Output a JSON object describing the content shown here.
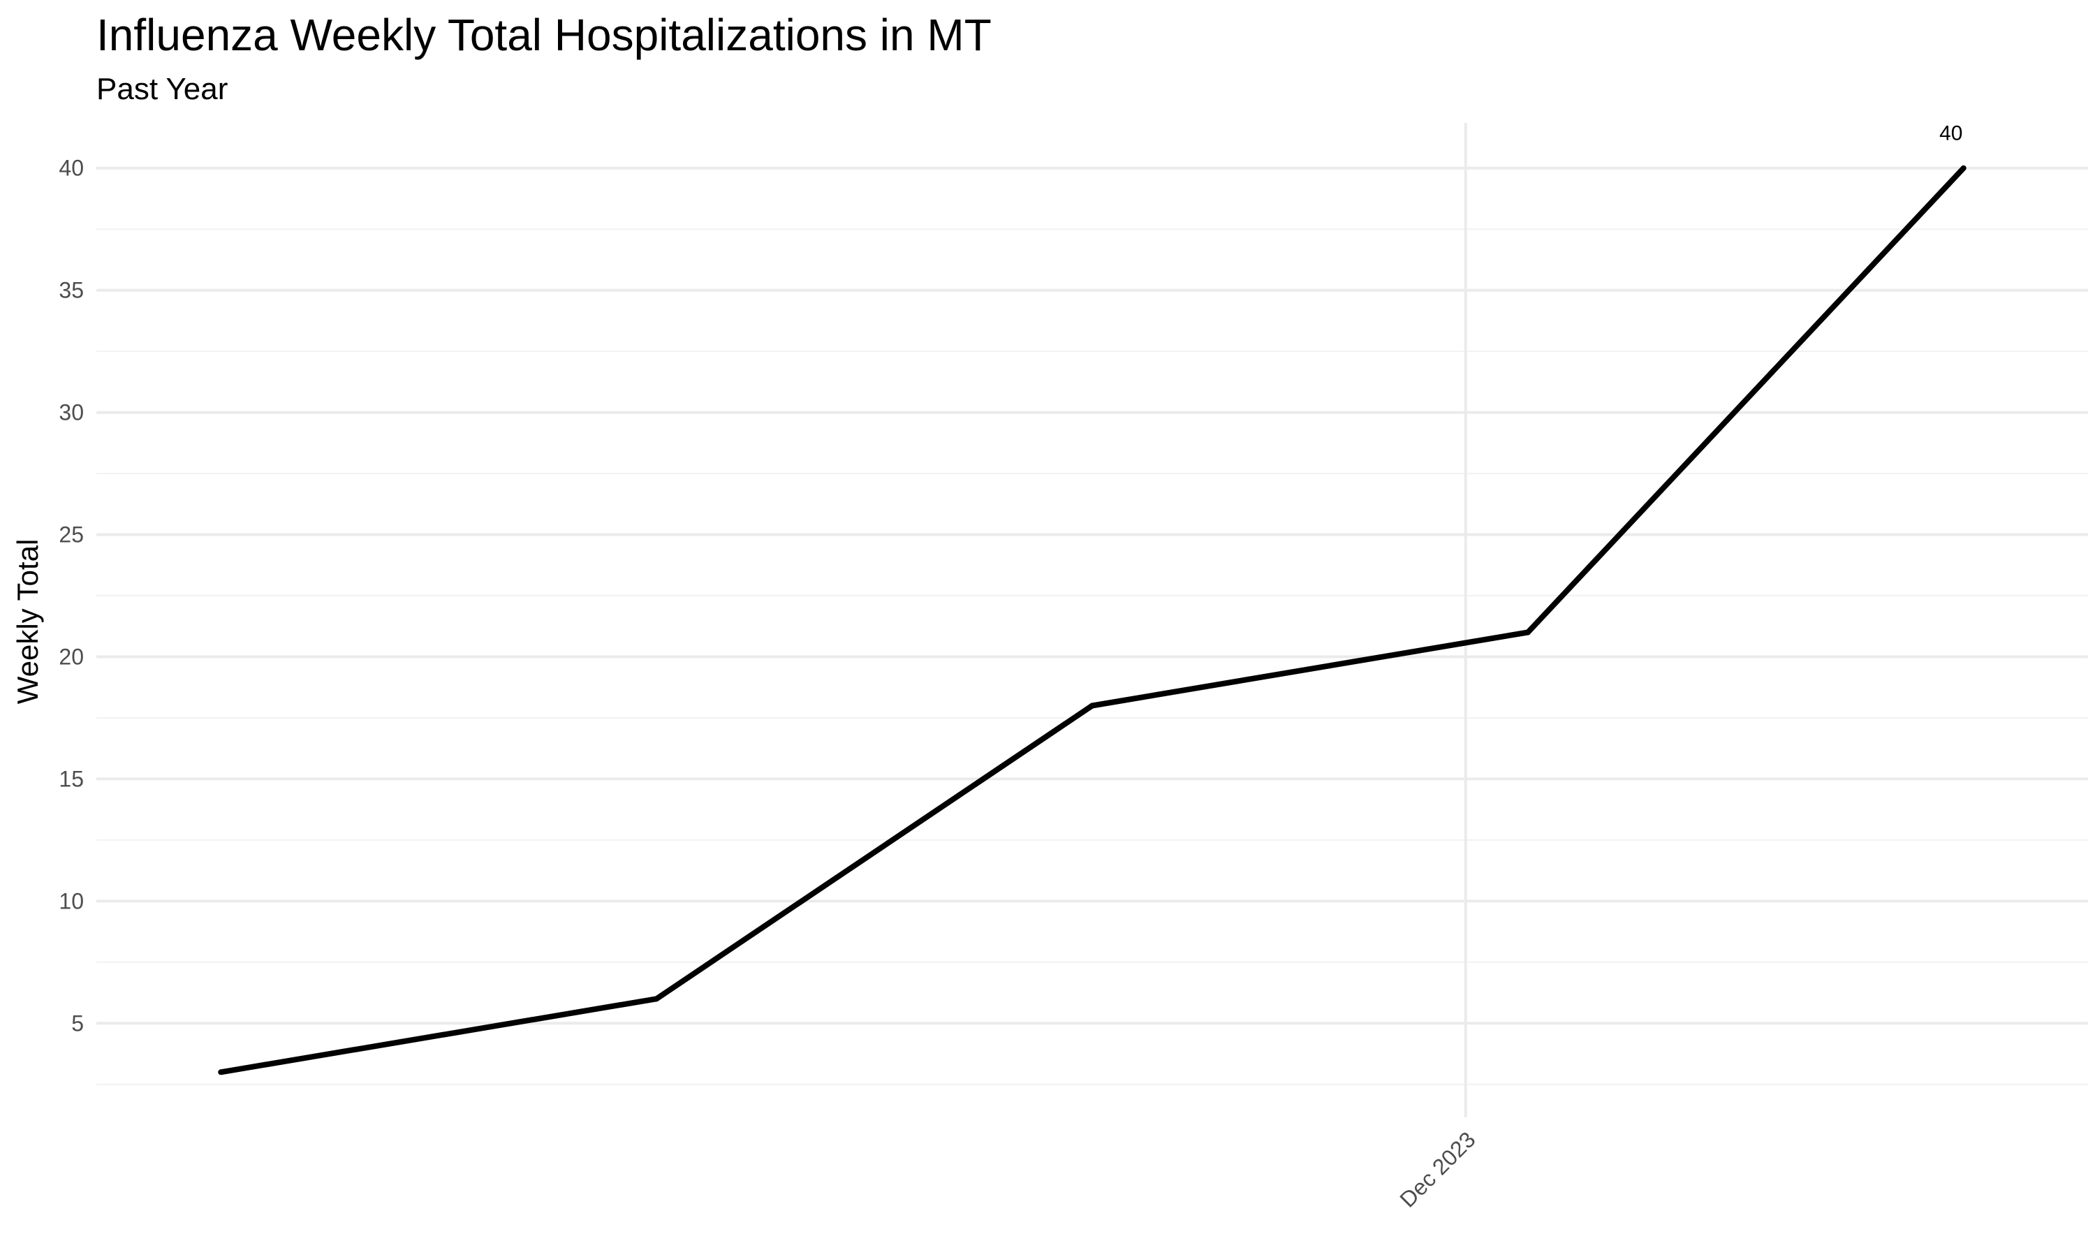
{
  "chart_data": {
    "type": "line",
    "title": "Influenza Weekly Total Hospitalizations in MT",
    "subtitle": "Past Year",
    "xlabel": "",
    "ylabel": "Weekly Total",
    "x": [
      "2023-11-11",
      "2023-11-18",
      "2023-11-25",
      "2023-12-02",
      "2023-12-09"
    ],
    "values": [
      3,
      6,
      18,
      21,
      40
    ],
    "x_ticks": [
      {
        "date": "2023-12-01",
        "label": "Dec 2023"
      }
    ],
    "y_ticks": [
      5,
      10,
      15,
      20,
      25,
      30,
      35,
      40
    ],
    "ylim": [
      1.15,
      41.85
    ],
    "xlim": [
      "2023-11-09",
      "2023-12-11"
    ],
    "grid": true,
    "line_color": "#000000",
    "annotations": [
      {
        "x": "2023-12-09",
        "y": 40,
        "text": "40"
      }
    ]
  }
}
